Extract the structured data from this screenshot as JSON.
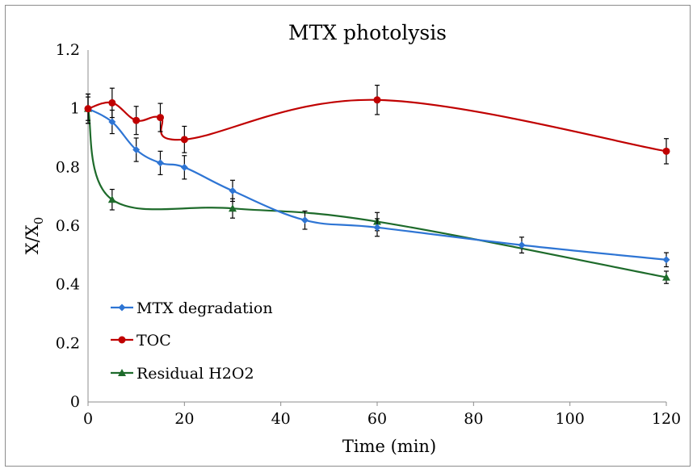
{
  "chart_data": {
    "type": "line",
    "title": "MTX photolysis",
    "xlabel": "Time (min)",
    "ylabel": "X/X0",
    "ylabel_main": "X/X",
    "ylabel_sub": "0",
    "xlim": [
      0,
      120
    ],
    "ylim": [
      0,
      1.2
    ],
    "xticks": [
      0,
      20,
      40,
      60,
      80,
      100,
      120
    ],
    "yticks": [
      0,
      0.2,
      0.4,
      0.6,
      0.8,
      1,
      1.2
    ],
    "ytick_labels": [
      "0",
      "0.2",
      "0.4",
      "0.6",
      "0.8",
      "1",
      "1.2"
    ],
    "grid": false,
    "legend_position": "bottom-left",
    "series": [
      {
        "name": "MTX degradation",
        "color": "#2e75d4",
        "marker": "diamond",
        "x": [
          0,
          5,
          10,
          15,
          20,
          30,
          45,
          60,
          90,
          120
        ],
        "y": [
          1.0,
          0.955,
          0.86,
          0.815,
          0.8,
          0.72,
          0.62,
          0.595,
          0.535,
          0.485
        ],
        "err": [
          0.04,
          0.04,
          0.04,
          0.04,
          0.04,
          0.036,
          0.031,
          0.03,
          0.027,
          0.024
        ]
      },
      {
        "name": "TOC",
        "color": "#c00000",
        "marker": "circle",
        "x": [
          0,
          5,
          10,
          15,
          20,
          60,
          120
        ],
        "y": [
          1.0,
          1.02,
          0.96,
          0.97,
          0.895,
          1.03,
          0.855
        ],
        "err": [
          0.05,
          0.05,
          0.048,
          0.048,
          0.045,
          0.05,
          0.043
        ]
      },
      {
        "name": "Residual H2O2",
        "color": "#1e6b2b",
        "marker": "triangle",
        "x": [
          0,
          5,
          30,
          60,
          120
        ],
        "y": [
          1.0,
          0.69,
          0.66,
          0.615,
          0.425
        ],
        "err": [
          0.05,
          0.035,
          0.033,
          0.031,
          0.021
        ]
      }
    ]
  }
}
